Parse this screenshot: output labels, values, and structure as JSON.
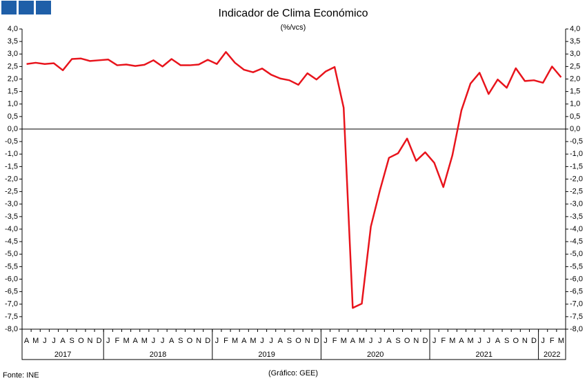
{
  "chart_data": {
    "type": "line",
    "title": "Indicador de Clima Económico",
    "subtitle": "(%/vcs)",
    "source": "Fonte: INE",
    "credit": "(Gráfico: GEE)",
    "categories": [
      "A",
      "M",
      "J",
      "J",
      "A",
      "S",
      "O",
      "N",
      "D",
      "J",
      "F",
      "M",
      "A",
      "M",
      "J",
      "J",
      "A",
      "S",
      "O",
      "N",
      "D",
      "J",
      "F",
      "M",
      "A",
      "M",
      "J",
      "J",
      "A",
      "S",
      "O",
      "N",
      "D",
      "J",
      "F",
      "M",
      "A",
      "M",
      "J",
      "J",
      "A",
      "S",
      "O",
      "N",
      "D",
      "J",
      "F",
      "M",
      "A",
      "M",
      "J",
      "J",
      "A",
      "S",
      "O",
      "N",
      "D",
      "J",
      "F",
      "M"
    ],
    "years": [
      "2017",
      "2018",
      "2019",
      "2020",
      "2021",
      "2022"
    ],
    "series": [
      {
        "name": "Indicador de Clima Económico",
        "color": "#e8141c",
        "values": [
          2.6,
          2.65,
          2.6,
          2.63,
          2.35,
          2.8,
          2.82,
          2.72,
          2.75,
          2.78,
          2.55,
          2.58,
          2.52,
          2.57,
          2.75,
          2.5,
          2.8,
          2.55,
          2.55,
          2.58,
          2.77,
          2.6,
          3.08,
          2.65,
          2.37,
          2.27,
          2.42,
          2.17,
          2.02,
          1.95,
          1.77,
          2.23,
          1.98,
          2.3,
          2.48,
          0.85,
          -7.15,
          -6.98,
          -3.9,
          -2.45,
          -1.15,
          -0.97,
          -0.38,
          -1.27,
          -0.93,
          -1.35,
          -2.32,
          -1.05,
          0.75,
          1.82,
          2.25,
          1.4,
          1.98,
          1.65,
          2.43,
          1.92,
          1.95,
          1.85,
          2.5,
          2.07
        ]
      }
    ],
    "ylim": [
      -8,
      4
    ],
    "yticks": [
      {
        "value": 4,
        "label": "4,0"
      },
      {
        "value": 3.5,
        "label": "3,5"
      },
      {
        "value": 3,
        "label": "3,0"
      },
      {
        "value": 2.5,
        "label": "2,5"
      },
      {
        "value": 2,
        "label": "2,0"
      },
      {
        "value": 1.5,
        "label": "1,5"
      },
      {
        "value": 1,
        "label": "1,0"
      },
      {
        "value": 0.5,
        "label": "0,5"
      },
      {
        "value": 0,
        "label": "0,0"
      },
      {
        "value": -0.5,
        "label": "-0,5"
      },
      {
        "value": -1,
        "label": "-1,0"
      },
      {
        "value": -1.5,
        "label": "-1,5"
      },
      {
        "value": -2,
        "label": "-2,0"
      },
      {
        "value": -2.5,
        "label": "-2,5"
      },
      {
        "value": -3,
        "label": "-3,0"
      },
      {
        "value": -3.5,
        "label": "-3,5"
      },
      {
        "value": -4,
        "label": "-4,0"
      },
      {
        "value": -4.5,
        "label": "-4,5"
      },
      {
        "value": -5,
        "label": "-5,0"
      },
      {
        "value": -5.5,
        "label": "-5,5"
      },
      {
        "value": -6,
        "label": "-6,0"
      },
      {
        "value": -6.5,
        "label": "-6,5"
      },
      {
        "value": -7,
        "label": "-7,0"
      },
      {
        "value": -7.5,
        "label": "-7,5"
      },
      {
        "value": -8,
        "label": "-8,0"
      }
    ],
    "grid": false
  }
}
